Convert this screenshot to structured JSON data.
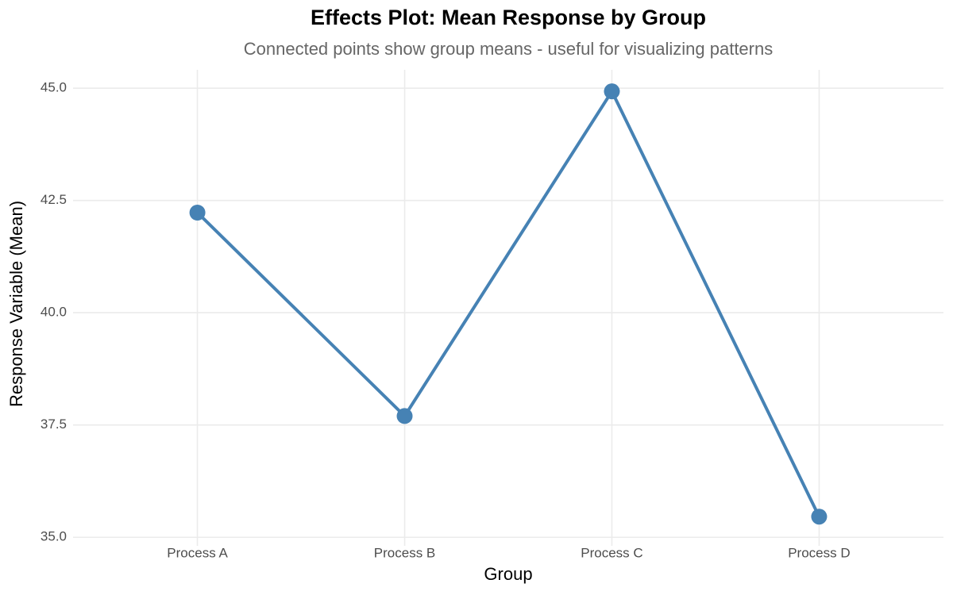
{
  "chart_data": {
    "type": "line",
    "title": "Effects Plot: Mean Response by Group",
    "subtitle": "Connected points show group means - useful for visualizing patterns",
    "x_label": "Group",
    "y_label": "Response Variable (Mean)",
    "categories": [
      "Process A",
      "Process B",
      "Process C",
      "Process D"
    ],
    "values": [
      42.23,
      37.7,
      44.93,
      35.46
    ],
    "color": "#4682b4",
    "ylim": [
      34.81,
      45.41
    ],
    "yticks": [
      {
        "value": 35,
        "label": "35.0"
      },
      {
        "value": 37.5,
        "label": "37.5"
      },
      {
        "value": 40,
        "label": "40.0"
      },
      {
        "value": 42.5,
        "label": "42.5"
      },
      {
        "value": 45,
        "label": "45.0"
      }
    ],
    "grid": true
  }
}
